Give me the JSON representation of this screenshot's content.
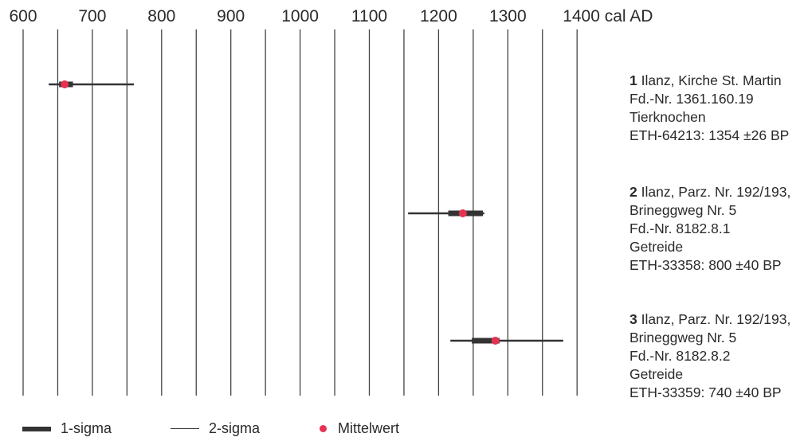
{
  "chart_data": {
    "type": "range",
    "x_ticks": [
      600,
      700,
      800,
      900,
      1000,
      1100,
      1200,
      1300,
      1400
    ],
    "x_unit": "cal AD",
    "xlim": [
      600,
      1400
    ],
    "samples": [
      {
        "number": "1",
        "lines": [
          "Ilanz, Kirche St. Martin",
          "Fd.-Nr. 1361.160.19",
          "Tierknochen",
          "ETH-64213: 1354 ±26 BP"
        ],
        "two_sigma": [
          637,
          760
        ],
        "one_sigma": [
          652,
          672
        ],
        "mean": 660
      },
      {
        "number": "2",
        "lines": [
          "Ilanz, Parz. Nr. 192/193,",
          "Brineggweg Nr. 5",
          "Fd.-Nr. 8182.8.1",
          "Getreide",
          "ETH-33358: 800 ±40 BP"
        ],
        "two_sigma": [
          1156,
          1266
        ],
        "one_sigma": [
          1214,
          1264
        ],
        "mean": 1235
      },
      {
        "number": "3",
        "lines": [
          "Ilanz, Parz. Nr. 192/193,",
          "Brineggweg Nr. 5",
          "Fd.-Nr. 8182.8.2",
          "Getreide",
          "ETH-33359: 740 ±40 BP"
        ],
        "two_sigma": [
          1217,
          1380
        ],
        "one_sigma": [
          1248,
          1288
        ],
        "mean": 1282
      }
    ],
    "legend": [
      "1-sigma",
      "2-sigma",
      "Mittelwert"
    ],
    "colors": {
      "mean": "#e63152",
      "line": "#333333"
    }
  }
}
